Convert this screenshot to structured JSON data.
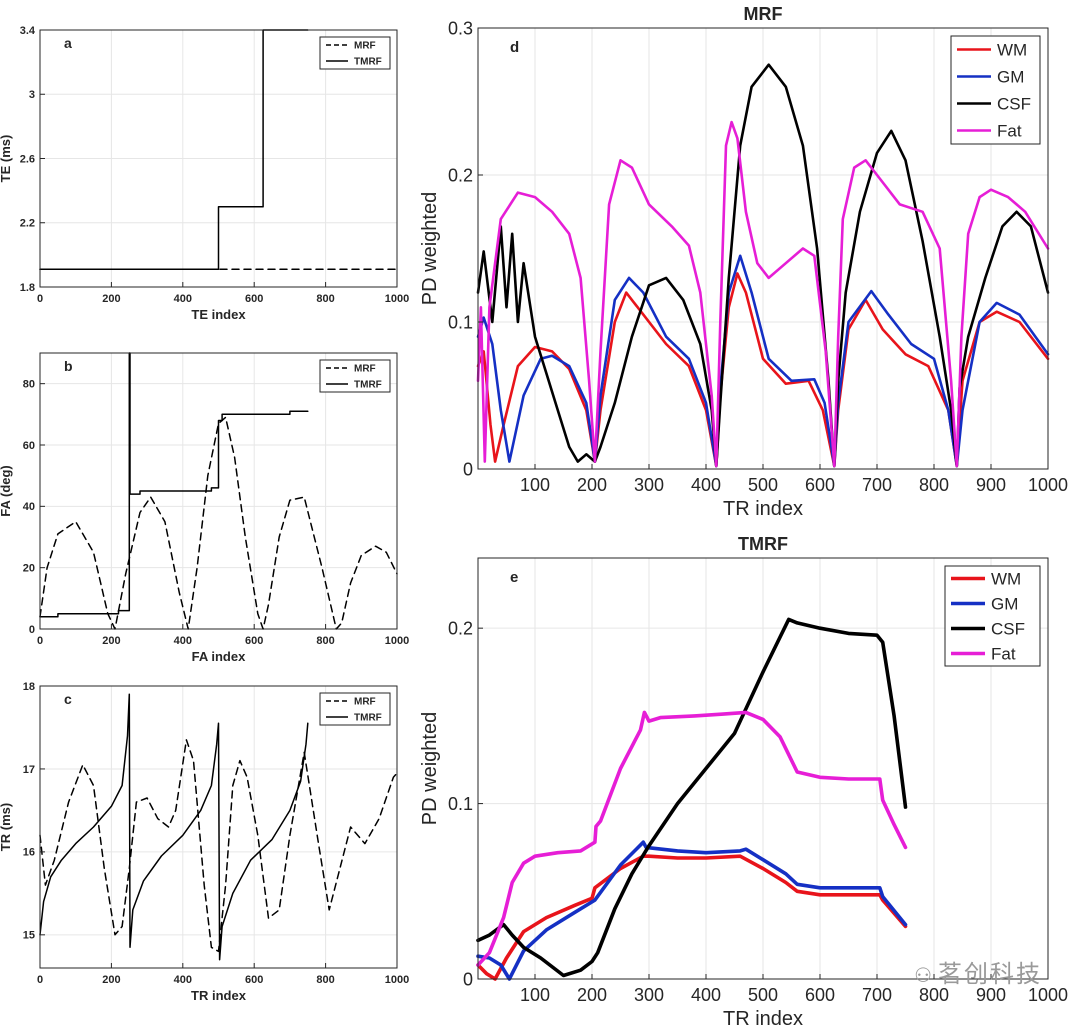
{
  "watermark": "茗创科技",
  "chart_data": [
    {
      "id": "a",
      "panel_label": "a",
      "type": "line",
      "title": "",
      "xlabel": "TE index",
      "ylabel": "TE (ms)",
      "xlim": [
        0,
        1000
      ],
      "ylim": [
        1.8,
        3.4
      ],
      "xticks": [
        0,
        200,
        400,
        600,
        800,
        1000
      ],
      "yticks": [
        1.8,
        2.2,
        2.6,
        3,
        3.4
      ],
      "ytick_labels": [
        "1.8",
        "2.2",
        "2.6",
        "3",
        "3.4"
      ],
      "grid": true,
      "legend": "top-right",
      "series": [
        {
          "name": "MRF",
          "style": "dashed",
          "color": "#000000",
          "x": [
            0,
            1000
          ],
          "y": [
            1.91,
            1.91
          ]
        },
        {
          "name": "TMRF",
          "style": "solid",
          "color": "#000000",
          "x": [
            0,
            500,
            500,
            625,
            625,
            750
          ],
          "y": [
            1.91,
            1.91,
            2.3,
            2.3,
            3.4,
            3.4
          ]
        }
      ]
    },
    {
      "id": "b",
      "panel_label": "b",
      "type": "line",
      "title": "",
      "xlabel": "FA index",
      "ylabel": "FA (deg)",
      "xlim": [
        0,
        1000
      ],
      "ylim": [
        0,
        90
      ],
      "xticks": [
        0,
        200,
        400,
        600,
        800,
        1000
      ],
      "yticks": [
        0,
        20,
        40,
        60,
        80
      ],
      "grid": true,
      "legend": "top-right",
      "series": [
        {
          "name": "MRF",
          "style": "dashed",
          "color": "#000000",
          "x": [
            0,
            20,
            50,
            100,
            150,
            190,
            210,
            240,
            280,
            310,
            350,
            390,
            415,
            440,
            470,
            500,
            520,
            545,
            575,
            610,
            625,
            640,
            670,
            700,
            740,
            790,
            830,
            845,
            870,
            900,
            940,
            970,
            1000
          ],
          "y": [
            4,
            20,
            31,
            35,
            25,
            5,
            0,
            18,
            38,
            43,
            35,
            12,
            0,
            20,
            50,
            67,
            69,
            56,
            30,
            5,
            0,
            8,
            30,
            42,
            43,
            20,
            0,
            2,
            15,
            24,
            27,
            25,
            18
          ]
        },
        {
          "name": "TMRF",
          "style": "solid",
          "color": "#000000",
          "x": [
            0,
            50,
            50,
            220,
            220,
            250,
            250,
            252,
            252,
            280,
            280,
            480,
            480,
            500,
            500,
            510,
            510,
            700,
            700,
            750
          ],
          "y": [
            4,
            4,
            5,
            5,
            6,
            6,
            90,
            90,
            44,
            44,
            45,
            45,
            46,
            46,
            68,
            68,
            70,
            70,
            71,
            71
          ]
        }
      ]
    },
    {
      "id": "c",
      "panel_label": "c",
      "type": "line",
      "title": "",
      "xlabel": "TR index",
      "ylabel": "TR (ms)",
      "xlim": [
        0,
        1000
      ],
      "ylim": [
        14.6,
        18
      ],
      "xticks": [
        0,
        200,
        400,
        600,
        800,
        1000
      ],
      "yticks": [
        15,
        16,
        17,
        18
      ],
      "grid": true,
      "legend": "top-right",
      "series": [
        {
          "name": "MRF",
          "style": "dashed",
          "color": "#000000",
          "x": [
            0,
            15,
            40,
            80,
            120,
            150,
            180,
            210,
            230,
            250,
            270,
            300,
            330,
            360,
            380,
            410,
            430,
            460,
            480,
            500,
            520,
            540,
            560,
            580,
            610,
            640,
            670,
            700,
            740,
            780,
            810,
            840,
            870,
            910,
            950,
            990,
            1000
          ],
          "y": [
            16.2,
            15.6,
            15.9,
            16.6,
            17.05,
            16.8,
            15.8,
            15.0,
            15.1,
            15.8,
            16.6,
            16.65,
            16.4,
            16.3,
            16.5,
            17.35,
            17.1,
            15.6,
            14.85,
            14.8,
            15.6,
            16.8,
            17.1,
            16.9,
            16.2,
            15.2,
            15.3,
            16.2,
            17.2,
            16.1,
            15.3,
            15.8,
            16.3,
            16.1,
            16.4,
            16.9,
            16.95
          ]
        },
        {
          "name": "TMRF",
          "style": "solid",
          "color": "#000000",
          "x": [
            0,
            10,
            30,
            60,
            100,
            150,
            200,
            230,
            245,
            250,
            252,
            260,
            290,
            340,
            400,
            450,
            480,
            495,
            500,
            503,
            510,
            540,
            590,
            650,
            700,
            730,
            745,
            750
          ],
          "y": [
            15.0,
            15.4,
            15.7,
            15.9,
            16.1,
            16.3,
            16.55,
            16.8,
            17.4,
            17.9,
            14.85,
            15.3,
            15.65,
            15.95,
            16.2,
            16.5,
            16.8,
            17.3,
            17.55,
            14.7,
            15.1,
            15.5,
            15.9,
            16.15,
            16.5,
            16.85,
            17.3,
            17.55
          ]
        }
      ]
    },
    {
      "id": "d",
      "panel_label": "d",
      "type": "line",
      "title": "MRF",
      "xlabel": "TR index",
      "ylabel": "PD weighted",
      "xlim": [
        0,
        1000
      ],
      "ylim": [
        0,
        0.3
      ],
      "xticks": [
        100,
        200,
        300,
        400,
        500,
        600,
        700,
        800,
        900,
        1000
      ],
      "yticks": [
        0,
        0.1,
        0.2,
        0.3
      ],
      "ytick_labels": [
        "0",
        "0.1",
        "0.2",
        "0.3"
      ],
      "grid": true,
      "legend": "top-right",
      "series": [
        {
          "name": "WM",
          "color": "#e8141b",
          "x": [
            0,
            10,
            22,
            30,
            45,
            70,
            100,
            130,
            160,
            190,
            205,
            215,
            240,
            260,
            290,
            330,
            370,
            400,
            418,
            425,
            440,
            455,
            470,
            500,
            540,
            580,
            605,
            625,
            632,
            650,
            680,
            710,
            750,
            790,
            825,
            840,
            850,
            880,
            910,
            950,
            1000
          ],
          "y": [
            0.07,
            0.08,
            0.03,
            0.005,
            0.03,
            0.07,
            0.083,
            0.08,
            0.068,
            0.04,
            0.005,
            0.04,
            0.1,
            0.12,
            0.105,
            0.085,
            0.07,
            0.04,
            0.002,
            0.05,
            0.11,
            0.133,
            0.12,
            0.075,
            0.058,
            0.06,
            0.04,
            0.002,
            0.04,
            0.095,
            0.115,
            0.095,
            0.078,
            0.07,
            0.04,
            0.002,
            0.06,
            0.1,
            0.107,
            0.1,
            0.075
          ]
        },
        {
          "name": "GM",
          "color": "#1530c4",
          "x": [
            0,
            10,
            25,
            40,
            55,
            80,
            110,
            130,
            160,
            190,
            205,
            215,
            240,
            265,
            290,
            330,
            370,
            400,
            418,
            425,
            440,
            460,
            480,
            510,
            550,
            590,
            608,
            625,
            632,
            650,
            690,
            720,
            760,
            800,
            825,
            840,
            850,
            880,
            910,
            950,
            1000
          ],
          "y": [
            0.09,
            0.103,
            0.085,
            0.04,
            0.005,
            0.05,
            0.075,
            0.077,
            0.07,
            0.045,
            0.005,
            0.05,
            0.115,
            0.13,
            0.12,
            0.09,
            0.075,
            0.045,
            0.002,
            0.055,
            0.12,
            0.145,
            0.12,
            0.075,
            0.06,
            0.061,
            0.045,
            0.002,
            0.045,
            0.1,
            0.121,
            0.105,
            0.085,
            0.075,
            0.04,
            0.002,
            0.04,
            0.1,
            0.113,
            0.105,
            0.078
          ]
        },
        {
          "name": "CSF",
          "color": "#000000",
          "x": [
            0,
            10,
            25,
            40,
            50,
            60,
            70,
            80,
            100,
            120,
            140,
            160,
            175,
            190,
            205,
            215,
            240,
            270,
            300,
            330,
            360,
            390,
            410,
            418,
            425,
            440,
            460,
            480,
            510,
            540,
            570,
            595,
            615,
            625,
            632,
            645,
            670,
            700,
            725,
            750,
            780,
            810,
            830,
            840,
            845,
            860,
            890,
            920,
            945,
            970,
            1000
          ],
          "y": [
            0.12,
            0.148,
            0.1,
            0.165,
            0.11,
            0.16,
            0.1,
            0.14,
            0.09,
            0.065,
            0.04,
            0.015,
            0.005,
            0.01,
            0.005,
            0.015,
            0.045,
            0.09,
            0.125,
            0.13,
            0.115,
            0.085,
            0.04,
            0.002,
            0.045,
            0.13,
            0.22,
            0.26,
            0.275,
            0.26,
            0.22,
            0.15,
            0.06,
            0.002,
            0.06,
            0.12,
            0.175,
            0.215,
            0.23,
            0.21,
            0.155,
            0.09,
            0.04,
            0.002,
            0.055,
            0.09,
            0.13,
            0.165,
            0.175,
            0.165,
            0.12
          ]
        },
        {
          "name": "Fat",
          "color": "#e61ed6",
          "x": [
            0,
            5,
            12,
            20,
            40,
            70,
            100,
            130,
            160,
            180,
            195,
            205,
            215,
            230,
            250,
            270,
            300,
            340,
            370,
            390,
            410,
            418,
            425,
            435,
            445,
            455,
            470,
            490,
            510,
            540,
            570,
            590,
            610,
            625,
            632,
            640,
            660,
            680,
            700,
            740,
            780,
            810,
            830,
            840,
            848,
            860,
            880,
            900,
            930,
            960,
            1000
          ],
          "y": [
            0.06,
            0.11,
            0.005,
            0.11,
            0.17,
            0.188,
            0.185,
            0.175,
            0.16,
            0.13,
            0.06,
            0.005,
            0.08,
            0.18,
            0.21,
            0.205,
            0.18,
            0.165,
            0.152,
            0.12,
            0.05,
            0.002,
            0.1,
            0.22,
            0.236,
            0.225,
            0.175,
            0.14,
            0.13,
            0.14,
            0.15,
            0.145,
            0.08,
            0.002,
            0.09,
            0.17,
            0.205,
            0.21,
            0.2,
            0.18,
            0.175,
            0.15,
            0.06,
            0.002,
            0.09,
            0.16,
            0.185,
            0.19,
            0.185,
            0.175,
            0.15
          ]
        }
      ]
    },
    {
      "id": "e",
      "panel_label": "e",
      "type": "line",
      "title": "TMRF",
      "xlabel": "TR index",
      "ylabel": "PD weighted",
      "xlim": [
        0,
        1000
      ],
      "ylim": [
        0,
        0.24
      ],
      "xticks": [
        100,
        200,
        300,
        400,
        500,
        600,
        700,
        800,
        900,
        1000
      ],
      "yticks": [
        0,
        0.1,
        0.2
      ],
      "ytick_labels": [
        "0",
        "0.1",
        "0.2"
      ],
      "grid": true,
      "legend": "top-right",
      "series": [
        {
          "name": "WM",
          "color": "#e8141b",
          "x": [
            0,
            15,
            30,
            50,
            80,
            120,
            170,
            200,
            205,
            250,
            290,
            300,
            350,
            400,
            460,
            500,
            540,
            560,
            600,
            650,
            705,
            710,
            750
          ],
          "y": [
            0.008,
            0.003,
            0.0,
            0.012,
            0.027,
            0.035,
            0.042,
            0.046,
            0.052,
            0.063,
            0.07,
            0.07,
            0.069,
            0.069,
            0.07,
            0.063,
            0.055,
            0.05,
            0.048,
            0.048,
            0.048,
            0.045,
            0.03
          ]
        },
        {
          "name": "GM",
          "color": "#1530c4",
          "x": [
            0,
            20,
            40,
            55,
            80,
            120,
            170,
            205,
            250,
            290,
            295,
            350,
            400,
            460,
            470,
            500,
            540,
            560,
            600,
            650,
            705,
            710,
            750
          ],
          "y": [
            0.013,
            0.012,
            0.008,
            0.0,
            0.016,
            0.028,
            0.038,
            0.045,
            0.065,
            0.078,
            0.075,
            0.073,
            0.072,
            0.073,
            0.074,
            0.068,
            0.06,
            0.054,
            0.052,
            0.052,
            0.052,
            0.047,
            0.031
          ]
        },
        {
          "name": "CSF",
          "color": "#000000",
          "x": [
            0,
            20,
            45,
            60,
            80,
            110,
            150,
            180,
            200,
            210,
            240,
            270,
            300,
            350,
            400,
            450,
            500,
            545,
            560,
            600,
            650,
            700,
            710,
            730,
            750
          ],
          "y": [
            0.022,
            0.025,
            0.031,
            0.025,
            0.018,
            0.012,
            0.002,
            0.005,
            0.01,
            0.015,
            0.04,
            0.06,
            0.076,
            0.1,
            0.12,
            0.14,
            0.175,
            0.205,
            0.203,
            0.2,
            0.197,
            0.196,
            0.192,
            0.15,
            0.098
          ]
        },
        {
          "name": "Fat",
          "color": "#e61ed6",
          "x": [
            0,
            20,
            45,
            60,
            80,
            100,
            140,
            180,
            205,
            207,
            215,
            250,
            285,
            292,
            300,
            320,
            380,
            430,
            470,
            500,
            530,
            560,
            600,
            650,
            705,
            710,
            730,
            750
          ],
          "y": [
            0.008,
            0.015,
            0.035,
            0.055,
            0.066,
            0.07,
            0.072,
            0.073,
            0.078,
            0.087,
            0.09,
            0.12,
            0.142,
            0.152,
            0.147,
            0.149,
            0.15,
            0.151,
            0.152,
            0.148,
            0.138,
            0.118,
            0.115,
            0.114,
            0.114,
            0.102,
            0.088,
            0.075
          ]
        }
      ]
    }
  ]
}
